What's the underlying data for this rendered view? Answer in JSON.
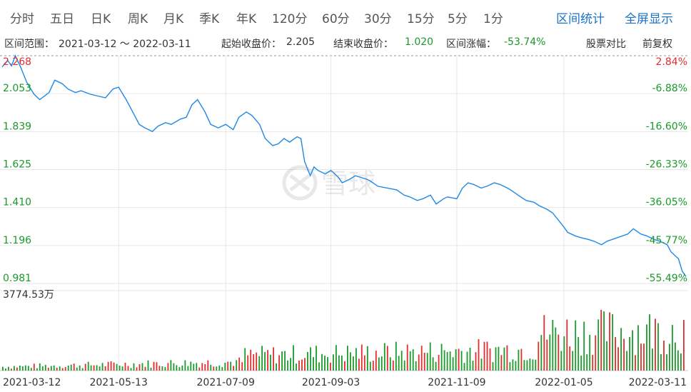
{
  "tabs": [
    "分时",
    "五日",
    "日K",
    "周K",
    "月K",
    "季K",
    "年K",
    "120分",
    "60分",
    "30分",
    "15分",
    "5分",
    "1分"
  ],
  "right_links": {
    "interval_stats": "区间统计",
    "fullscreen": "全屏显示"
  },
  "info": {
    "range_label": "区间范围：",
    "range_value": "2021-03-12 ～ 2022-03-11",
    "start_label": "起始收盘价：",
    "start_value": "2.205",
    "end_label": "结束收盘价：",
    "end_value": "1.020",
    "change_label": "区间涨幅：",
    "change_value": "-53.74%",
    "compare": "股票对比",
    "adjust": "前复权"
  },
  "watermark": "雪球",
  "volume_max_label": "3774.53万",
  "chart_data": {
    "type": "line",
    "y_left_ticks": [
      "2.268",
      "2.053",
      "1.839",
      "1.625",
      "1.410",
      "1.196",
      "0.981"
    ],
    "y_right_ticks": [
      "2.84%",
      "-6.88%",
      "-16.60%",
      "-26.33%",
      "-36.05%",
      "-45.77%",
      "-55.49%"
    ],
    "ylim": [
      0.981,
      2.268
    ],
    "x_ticks": [
      "2021-03-12",
      "2021-05-13",
      "2021-07-09",
      "2021-09-03",
      "2021-11-09",
      "2022-01-05",
      "2022-03-11"
    ],
    "x_range": [
      "2021-03-12",
      "2022-03-11"
    ],
    "colors": {
      "line": "#1e88e5",
      "up": "#e02d2d",
      "down": "#1a9a2a",
      "grid": "#e6e6e6"
    },
    "price": [
      [
        "2021-03-12",
        2.205
      ],
      [
        "2021-03-15",
        2.24
      ],
      [
        "2021-03-17",
        2.21
      ],
      [
        "2021-03-19",
        2.268
      ],
      [
        "2021-03-22",
        2.2
      ],
      [
        "2021-03-25",
        2.12
      ],
      [
        "2021-03-29",
        2.05
      ],
      [
        "2021-04-01",
        2.02
      ],
      [
        "2021-04-06",
        2.06
      ],
      [
        "2021-04-09",
        2.13
      ],
      [
        "2021-04-13",
        2.11
      ],
      [
        "2021-04-16",
        2.08
      ],
      [
        "2021-04-20",
        2.06
      ],
      [
        "2021-04-23",
        2.07
      ],
      [
        "2021-04-28",
        2.05
      ],
      [
        "2021-05-06",
        2.03
      ],
      [
        "2021-05-10",
        2.08
      ],
      [
        "2021-05-13",
        2.09
      ],
      [
        "2021-05-17",
        2.02
      ],
      [
        "2021-05-20",
        1.96
      ],
      [
        "2021-05-24",
        1.88
      ],
      [
        "2021-05-27",
        1.86
      ],
      [
        "2021-05-31",
        1.84
      ],
      [
        "2021-06-03",
        1.87
      ],
      [
        "2021-06-07",
        1.89
      ],
      [
        "2021-06-10",
        1.88
      ],
      [
        "2021-06-15",
        1.91
      ],
      [
        "2021-06-18",
        1.92
      ],
      [
        "2021-06-21",
        1.99
      ],
      [
        "2021-06-24",
        2.02
      ],
      [
        "2021-06-28",
        1.95
      ],
      [
        "2021-07-01",
        1.88
      ],
      [
        "2021-07-05",
        1.86
      ],
      [
        "2021-07-09",
        1.88
      ],
      [
        "2021-07-13",
        1.85
      ],
      [
        "2021-07-16",
        1.92
      ],
      [
        "2021-07-20",
        1.95
      ],
      [
        "2021-07-23",
        1.93
      ],
      [
        "2021-07-27",
        1.88
      ],
      [
        "2021-07-30",
        1.8
      ],
      [
        "2021-08-03",
        1.76
      ],
      [
        "2021-08-06",
        1.77
      ],
      [
        "2021-08-09",
        1.8
      ],
      [
        "2021-08-12",
        1.78
      ],
      [
        "2021-08-16",
        1.81
      ],
      [
        "2021-08-18",
        1.8
      ],
      [
        "2021-08-20",
        1.67
      ],
      [
        "2021-08-23",
        1.59
      ],
      [
        "2021-08-25",
        1.64
      ],
      [
        "2021-08-27",
        1.62
      ],
      [
        "2021-08-31",
        1.6
      ],
      [
        "2021-09-03",
        1.62
      ],
      [
        "2021-09-07",
        1.58
      ],
      [
        "2021-09-09",
        1.55
      ],
      [
        "2021-09-13",
        1.57
      ],
      [
        "2021-09-16",
        1.59
      ],
      [
        "2021-09-22",
        1.57
      ],
      [
        "2021-09-24",
        1.56
      ],
      [
        "2021-09-28",
        1.53
      ],
      [
        "2021-10-08",
        1.51
      ],
      [
        "2021-10-12",
        1.48
      ],
      [
        "2021-10-15",
        1.47
      ],
      [
        "2021-10-19",
        1.45
      ],
      [
        "2021-10-22",
        1.46
      ],
      [
        "2021-10-26",
        1.48
      ],
      [
        "2021-10-29",
        1.43
      ],
      [
        "2021-11-02",
        1.46
      ],
      [
        "2021-11-04",
        1.47
      ],
      [
        "2021-11-09",
        1.46
      ],
      [
        "2021-11-12",
        1.52
      ],
      [
        "2021-11-15",
        1.55
      ],
      [
        "2021-11-18",
        1.54
      ],
      [
        "2021-11-22",
        1.52
      ],
      [
        "2021-11-25",
        1.53
      ],
      [
        "2021-11-29",
        1.55
      ],
      [
        "2021-12-02",
        1.54
      ],
      [
        "2021-12-06",
        1.52
      ],
      [
        "2021-12-09",
        1.5
      ],
      [
        "2021-12-13",
        1.47
      ],
      [
        "2021-12-16",
        1.45
      ],
      [
        "2021-12-20",
        1.44
      ],
      [
        "2021-12-23",
        1.42
      ],
      [
        "2021-12-27",
        1.4
      ],
      [
        "2021-12-30",
        1.38
      ],
      [
        "2022-01-05",
        1.3
      ],
      [
        "2022-01-07",
        1.27
      ],
      [
        "2022-01-11",
        1.25
      ],
      [
        "2022-01-14",
        1.24
      ],
      [
        "2022-01-18",
        1.23
      ],
      [
        "2022-01-21",
        1.22
      ],
      [
        "2022-01-25",
        1.2
      ],
      [
        "2022-01-28",
        1.22
      ],
      [
        "2022-02-08",
        1.26
      ],
      [
        "2022-02-11",
        1.29
      ],
      [
        "2022-02-15",
        1.26
      ],
      [
        "2022-02-18",
        1.25
      ],
      [
        "2022-02-22",
        1.23
      ],
      [
        "2022-02-25",
        1.22
      ],
      [
        "2022-03-01",
        1.2
      ],
      [
        "2022-03-03",
        1.16
      ],
      [
        "2022-03-07",
        1.12
      ],
      [
        "2022-03-09",
        1.05
      ],
      [
        "2022-03-11",
        1.02
      ]
    ]
  }
}
